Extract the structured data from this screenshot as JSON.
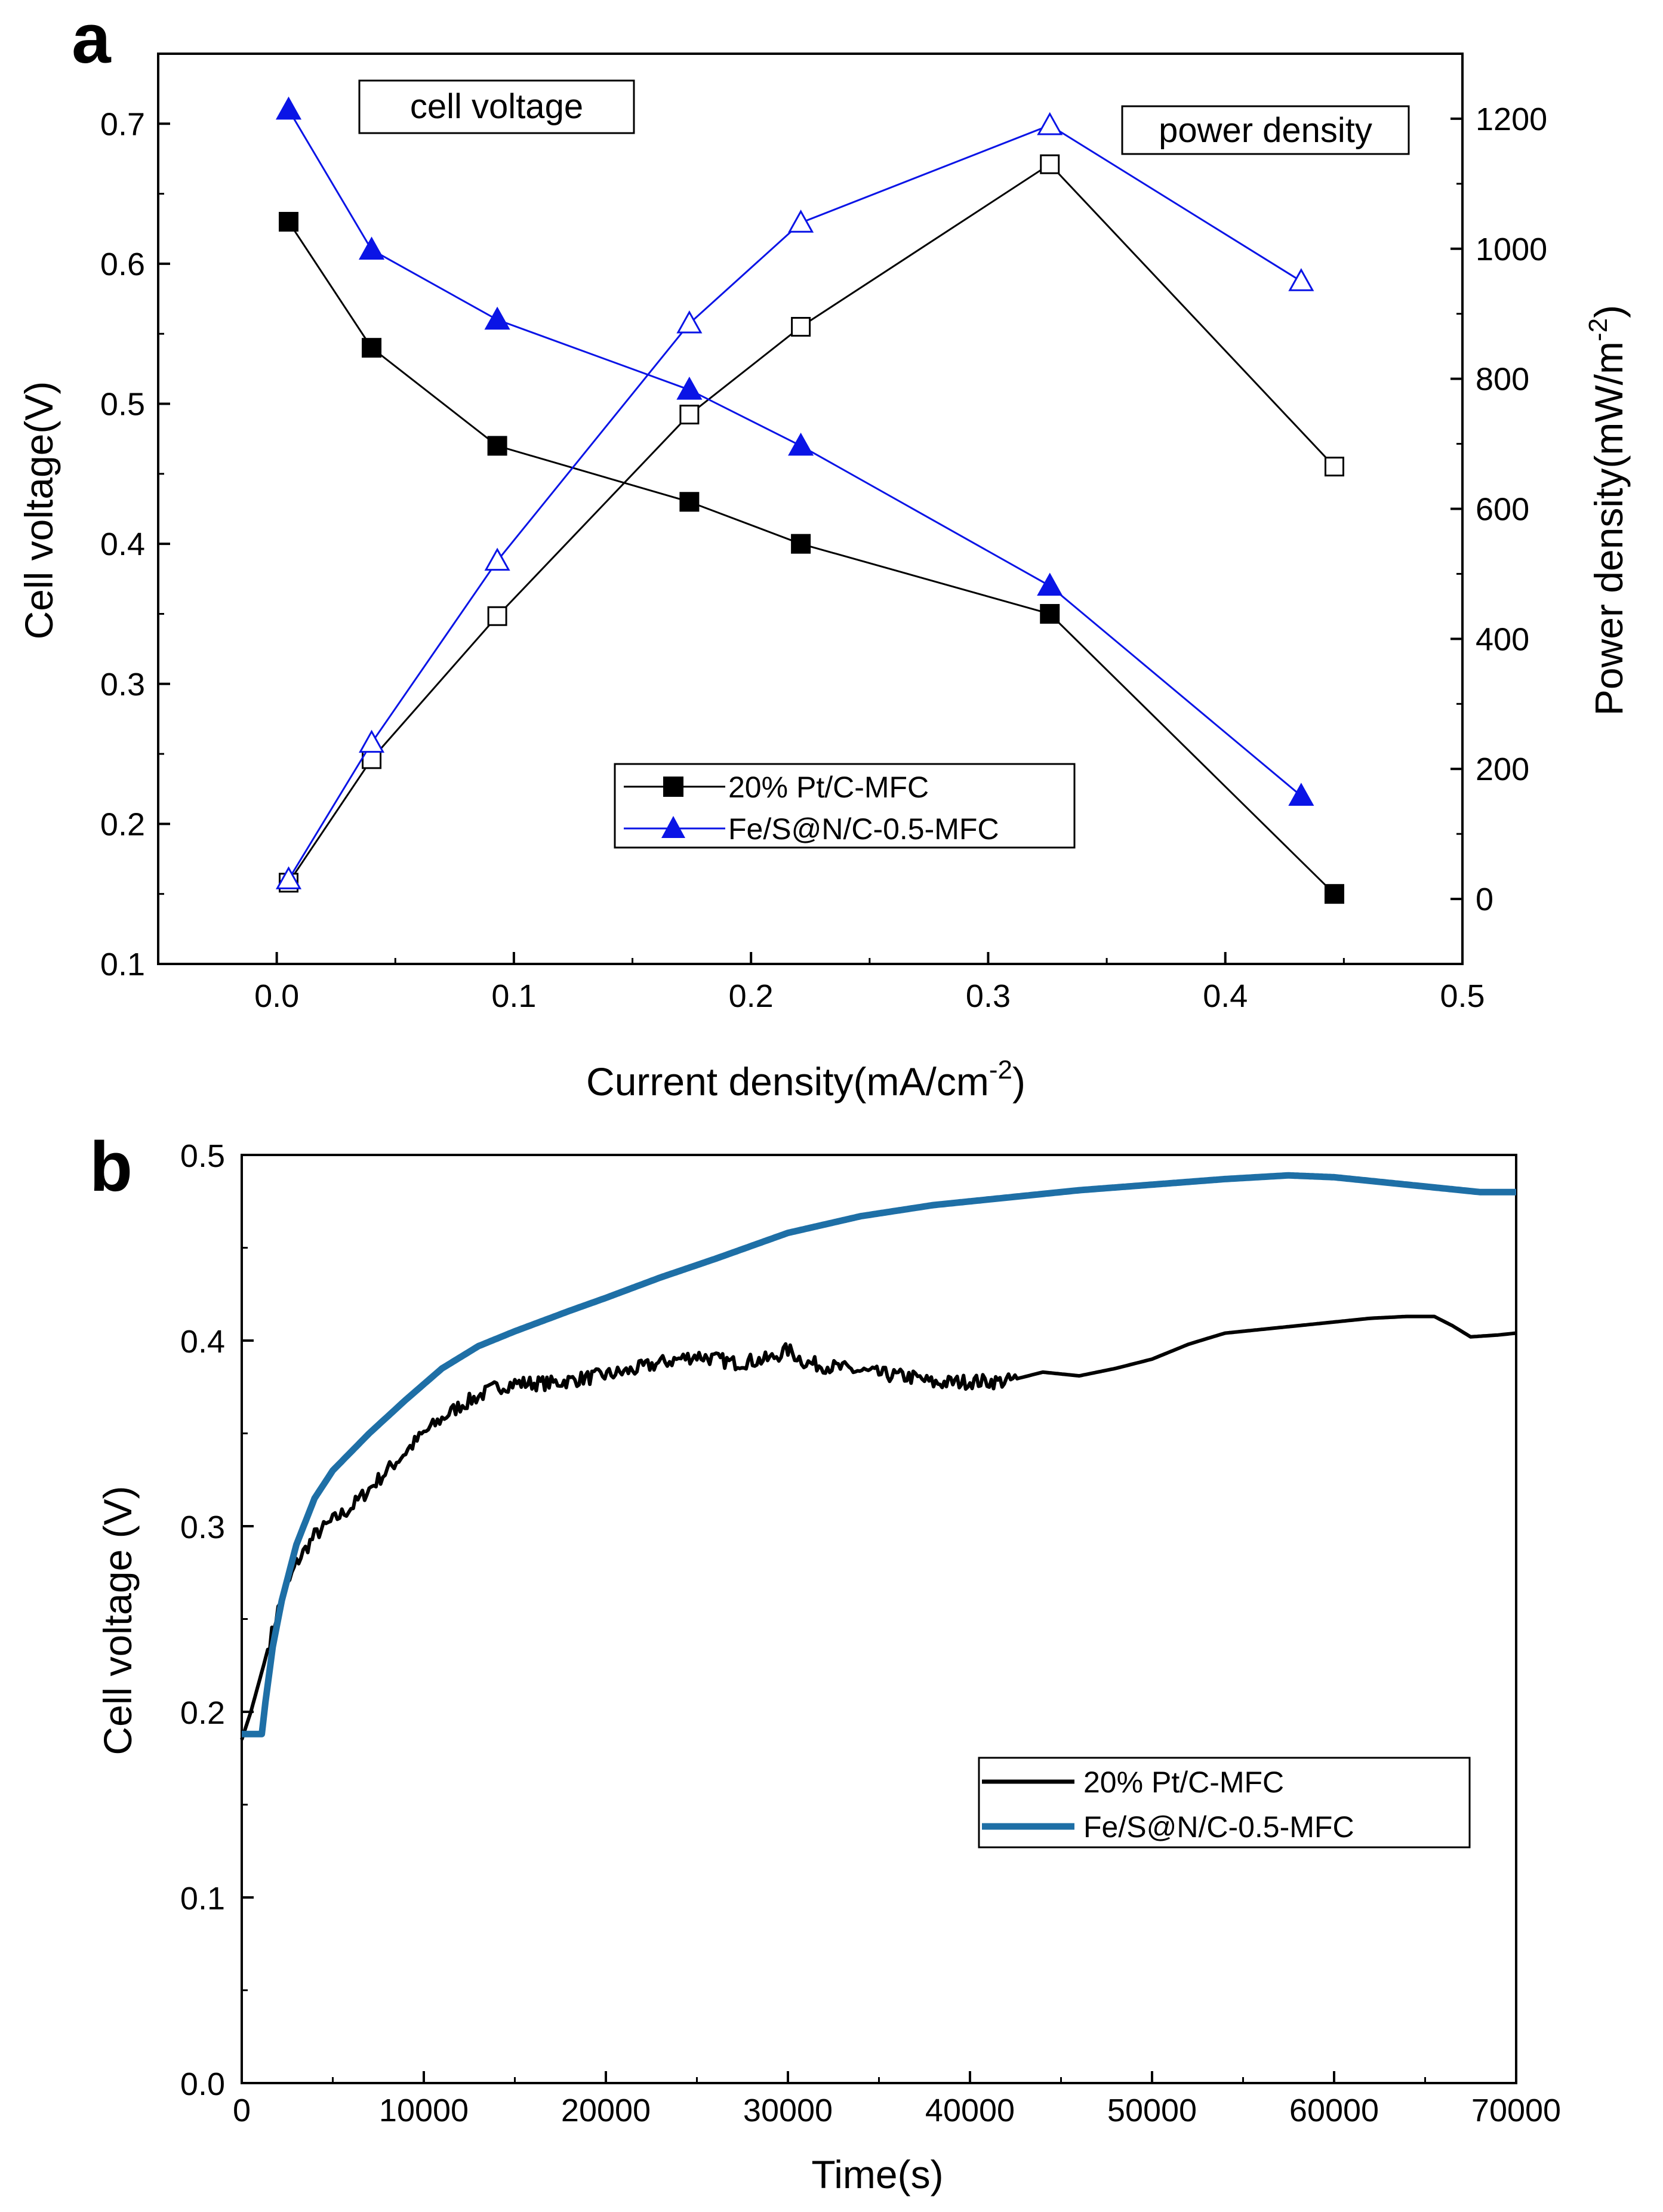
{
  "colors": {
    "black": "#000000",
    "blue": "#0a14e6",
    "teal": "#1e6fa6",
    "white": "#ffffff"
  },
  "chart_data": [
    {
      "panel": "a",
      "type": "line",
      "xlabel": "Current density(mA/cm⁻²)",
      "ylabel": "Cell voltage(V)",
      "y2label": "Power density(mW/m⁻²)",
      "xlim": [
        -0.05,
        0.5
      ],
      "ylim": [
        0.1,
        0.75
      ],
      "y2lim": [
        -100,
        1300
      ],
      "xticks": [
        0.0,
        0.1,
        0.2,
        0.3,
        0.4,
        0.5
      ],
      "xtick_labels": [
        "0.0",
        "0.1",
        "0.2",
        "0.3",
        "0.4",
        "0.5"
      ],
      "yticks": [
        0.1,
        0.2,
        0.3,
        0.4,
        0.5,
        0.6,
        0.7
      ],
      "ytick_labels": [
        "0.1",
        "0.2",
        "0.3",
        "0.4",
        "0.5",
        "0.6",
        "0.7"
      ],
      "y2ticks": [
        0,
        200,
        400,
        600,
        800,
        1000,
        1200
      ],
      "y2tick_labels": [
        "0",
        "200",
        "400",
        "600",
        "800",
        "1000",
        "1200"
      ],
      "annotations": {
        "voltage_box": "cell voltage",
        "power_box": "power density"
      },
      "legend": {
        "placement": "lower-center",
        "entries": [
          "20% Pt/C-MFC",
          "Fe/S@N/C-0.5-MFC"
        ]
      },
      "series": [
        {
          "name": "20% Pt/C-MFC",
          "quantity": "cell voltage",
          "axis": "left",
          "marker": "filled-square",
          "color": "#000000",
          "x": [
            0.005,
            0.04,
            0.093,
            0.174,
            0.221,
            0.326,
            0.446
          ],
          "y": [
            0.63,
            0.54,
            0.47,
            0.43,
            0.4,
            0.35,
            0.15
          ]
        },
        {
          "name": "20% Pt/C-MFC",
          "quantity": "power density",
          "axis": "right",
          "marker": "open-square",
          "color": "#000000",
          "x": [
            0.005,
            0.04,
            0.093,
            0.174,
            0.221,
            0.326,
            0.446
          ],
          "y": [
            25,
            215,
            435,
            745,
            880,
            1130,
            665
          ]
        },
        {
          "name": "Fe/S@N/C-0.5-MFC",
          "quantity": "cell voltage",
          "axis": "left",
          "marker": "filled-triangle",
          "color": "#0a14e6",
          "x": [
            0.005,
            0.04,
            0.093,
            0.174,
            0.221,
            0.326,
            0.432
          ],
          "y": [
            0.71,
            0.61,
            0.56,
            0.51,
            0.47,
            0.37,
            0.22
          ]
        },
        {
          "name": "Fe/S@N/C-0.5-MFC",
          "quantity": "power density",
          "axis": "right",
          "marker": "open-triangle",
          "color": "#0a14e6",
          "x": [
            0.005,
            0.04,
            0.093,
            0.174,
            0.221,
            0.326,
            0.432
          ],
          "y": [
            30,
            240,
            520,
            885,
            1040,
            1190,
            950
          ]
        }
      ]
    },
    {
      "panel": "b",
      "type": "line",
      "xlabel": "Time(s)",
      "ylabel": "Cell voltage (V)",
      "xlim": [
        0,
        70000
      ],
      "ylim": [
        0.0,
        0.5
      ],
      "xticks": [
        0,
        10000,
        20000,
        30000,
        40000,
        50000,
        60000,
        70000
      ],
      "xtick_labels": [
        "0",
        "10000",
        "20000",
        "30000",
        "40000",
        "50000",
        "60000",
        "70000"
      ],
      "yticks": [
        0.0,
        0.1,
        0.2,
        0.3,
        0.4,
        0.5
      ],
      "ytick_labels": [
        "0.0",
        "0.1",
        "0.2",
        "0.3",
        "0.4",
        "0.5"
      ],
      "legend": {
        "placement": "lower-right",
        "entries": [
          "20% Pt/C-MFC",
          "Fe/S@N/C-0.5-MFC"
        ]
      },
      "series": [
        {
          "name": "20% Pt/C-MFC",
          "color": "#000000",
          "x": [
            0,
            500,
            1200,
            2000,
            3000,
            4000,
            5000,
            6000,
            7000,
            8000,
            9000,
            10000,
            11000,
            12000,
            13000,
            14000,
            15000,
            17000,
            19000,
            21000,
            23000,
            24000,
            25000,
            27000,
            29000,
            30000,
            31000,
            33000,
            35000,
            37000,
            38000,
            40000,
            42000,
            44000,
            46000,
            48000,
            50000,
            52000,
            54000,
            56000,
            58000,
            60000,
            62000,
            64000,
            65500,
            66500,
            67500,
            69000,
            70000
          ],
          "y": [
            0.185,
            0.2,
            0.225,
            0.255,
            0.28,
            0.295,
            0.303,
            0.31,
            0.32,
            0.33,
            0.34,
            0.35,
            0.358,
            0.365,
            0.37,
            0.375,
            0.377,
            0.377,
            0.38,
            0.383,
            0.388,
            0.39,
            0.392,
            0.388,
            0.39,
            0.395,
            0.388,
            0.385,
            0.382,
            0.38,
            0.377,
            0.378,
            0.378,
            0.383,
            0.381,
            0.385,
            0.39,
            0.398,
            0.404,
            0.406,
            0.408,
            0.41,
            0.412,
            0.413,
            0.413,
            0.408,
            0.402,
            0.403,
            0.404
          ]
        },
        {
          "name": "Fe/S@N/C-0.5-MFC",
          "color": "#1e6fa6",
          "x": [
            0,
            1100,
            1300,
            1700,
            2200,
            3000,
            4000,
            5000,
            7000,
            9000,
            11000,
            13000,
            15000,
            18000,
            20000,
            23000,
            26000,
            30000,
            34000,
            38000,
            42000,
            46000,
            50000,
            54000,
            57500,
            60000,
            63000,
            66000,
            68000,
            70000
          ],
          "y": [
            0.188,
            0.188,
            0.205,
            0.235,
            0.26,
            0.29,
            0.315,
            0.33,
            0.35,
            0.368,
            0.385,
            0.397,
            0.405,
            0.416,
            0.423,
            0.434,
            0.444,
            0.458,
            0.467,
            0.473,
            0.477,
            0.481,
            0.484,
            0.487,
            0.489,
            0.488,
            0.485,
            0.482,
            0.48,
            0.48
          ]
        }
      ]
    }
  ]
}
